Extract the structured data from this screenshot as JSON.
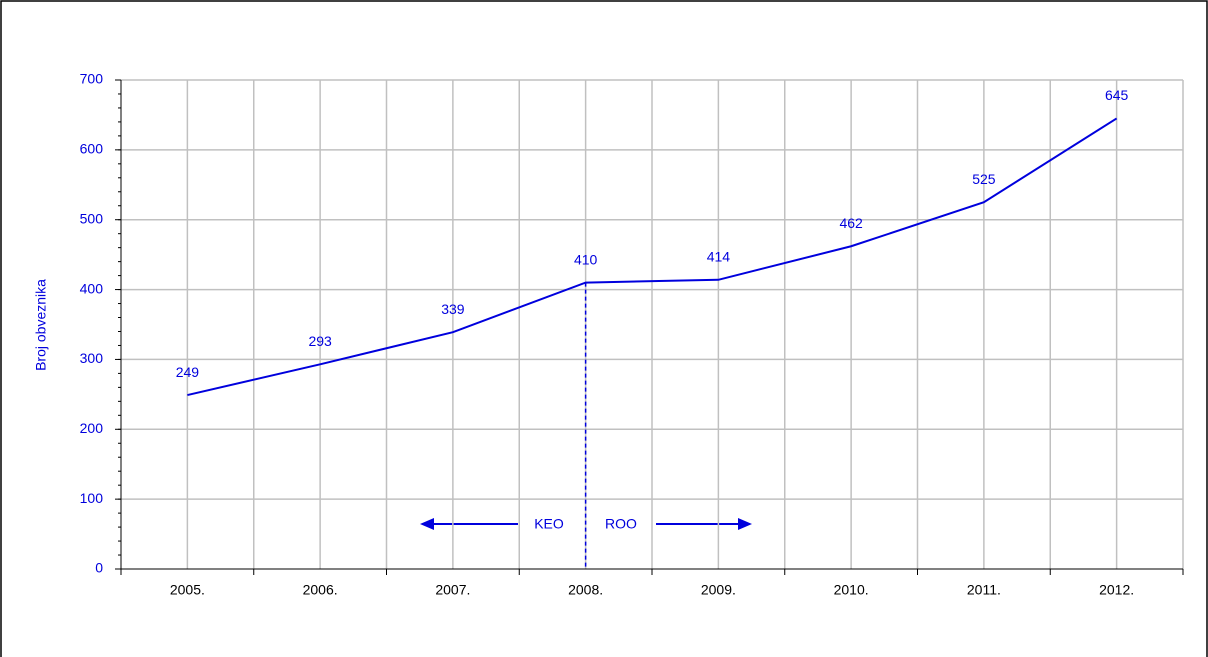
{
  "chart_data": {
    "type": "line",
    "y_label": "Broj obveznika",
    "categories": [
      "2005.",
      "2006.",
      "2007.",
      "2008.",
      "2009.",
      "2010.",
      "2011.",
      "2012."
    ],
    "series": [
      {
        "name": "Broj obveznika",
        "color": "#0000dd",
        "values": [
          249,
          293,
          339,
          410,
          414,
          462,
          525,
          645
        ]
      }
    ],
    "ylim": [
      0,
      700
    ],
    "yticks": [
      0,
      100,
      200,
      300,
      400,
      500,
      600,
      700
    ],
    "grid": true,
    "annotations": [
      "KEO",
      "ROO"
    ]
  }
}
